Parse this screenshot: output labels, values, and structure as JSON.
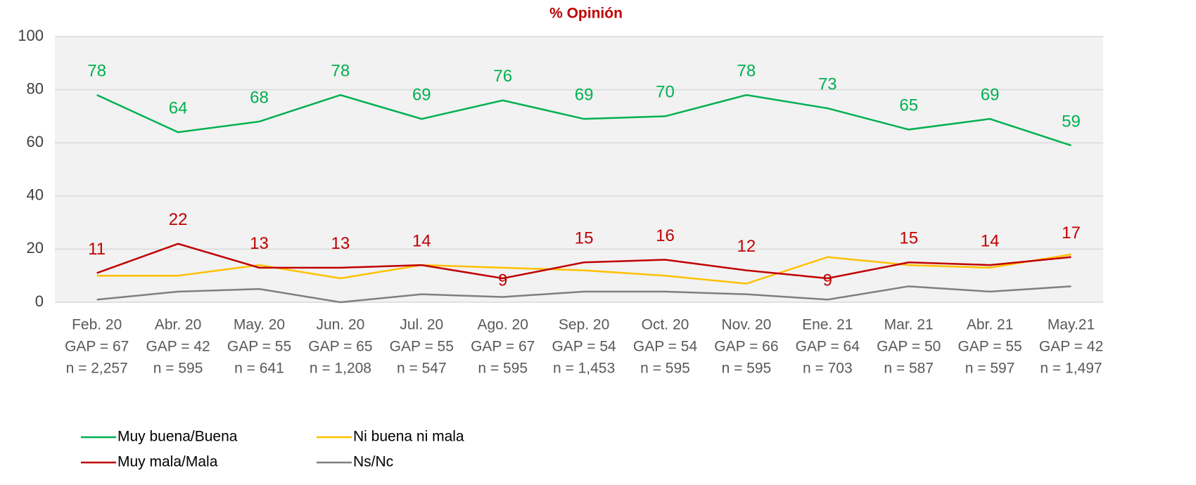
{
  "chart_data": {
    "type": "line",
    "title": "% Opinión",
    "categories": [
      "Feb. 20",
      "Abr. 20",
      "May. 20",
      "Jun. 20",
      "Jul. 20",
      "Ago. 20",
      "Sep. 20",
      "Oct. 20",
      "Nov. 20",
      "Ene. 21",
      "Mar. 21",
      "Abr. 21",
      "May.21"
    ],
    "gap": [
      "GAP = 67",
      "GAP = 42",
      "GAP = 55",
      "GAP = 65",
      "GAP = 55",
      "GAP = 67",
      "GAP = 54",
      "GAP = 54",
      "GAP = 66",
      "GAP = 64",
      "GAP = 50",
      "GAP = 55",
      "GAP = 42"
    ],
    "n": [
      "n = 2,257",
      "n = 595",
      "n = 641",
      "n = 1,208",
      "n = 547",
      "n = 595",
      "n = 1,453",
      "n =  595",
      "n = 595",
      "n = 703",
      "n = 587",
      "n = 597",
      "n = 1,497"
    ],
    "series": [
      {
        "name": "Muy buena/Buena",
        "color": "#00b050",
        "show_labels": true,
        "values": [
          78,
          64,
          68,
          78,
          69,
          76,
          69,
          70,
          78,
          73,
          65,
          69,
          59
        ]
      },
      {
        "name": "Ni buena ni mala",
        "color": "#ffc000",
        "show_labels": false,
        "values": [
          10,
          10,
          14,
          9,
          14,
          13,
          12,
          10,
          7,
          17,
          14,
          13,
          18
        ]
      },
      {
        "name": "Muy mala/Mala",
        "color": "#c00000",
        "show_labels": true,
        "values": [
          11,
          22,
          13,
          13,
          14,
          9,
          15,
          16,
          12,
          9,
          15,
          14,
          17
        ]
      },
      {
        "name": "Ns/Nc",
        "color": "#7f7f7f",
        "show_labels": false,
        "values": [
          1,
          4,
          5,
          0,
          3,
          2,
          4,
          4,
          3,
          1,
          6,
          4,
          6
        ]
      }
    ],
    "ylim": [
      0,
      100
    ],
    "yticks": [
      0,
      20,
      40,
      60,
      80,
      100
    ],
    "grid": true,
    "legend": "bottom-left"
  }
}
